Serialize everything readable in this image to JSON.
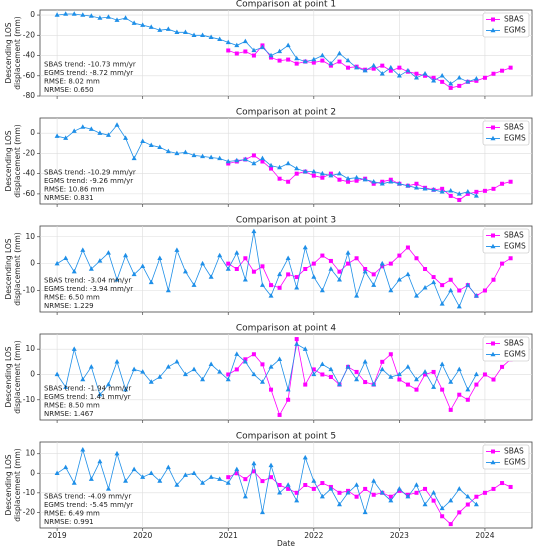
{
  "chart_data": [
    {
      "type": "line",
      "title": "Comparison at point 1",
      "ylabel": [
        "Descending LOS",
        "displacement (mm)"
      ],
      "annotations": [
        "SBAS trend: -10.73 mm/yr",
        "EGMS trend: -8.72 mm/yr",
        "RMSE: 8.02 mm",
        "NRMSE: 0.650"
      ],
      "xlim": [
        2018.8,
        2024.55
      ],
      "ylim": [
        -80,
        5
      ],
      "yticks": [
        -80,
        -60,
        -40,
        -20,
        0
      ],
      "grid": true,
      "legend": "upper right",
      "series": [
        {
          "name": "SBAS",
          "color": "#ff00ff",
          "marker": "s",
          "x": [
            2021,
            2021.1,
            2021.2,
            2021.3,
            2021.4,
            2021.5,
            2021.6,
            2021.7,
            2021.8,
            2021.9,
            2022,
            2022.1,
            2022.2,
            2022.3,
            2022.4,
            2022.5,
            2022.6,
            2022.7,
            2022.8,
            2022.9,
            2023,
            2023.1,
            2023.2,
            2023.3,
            2023.4,
            2023.5,
            2023.6,
            2023.7,
            2023.8,
            2023.9,
            2024,
            2024.1,
            2024.2,
            2024.3
          ],
          "values": [
            -35,
            -38,
            -36,
            -40,
            -30,
            -42,
            -45,
            -44,
            -48,
            -46,
            -47,
            -45,
            -50,
            -46,
            -52,
            -51,
            -54,
            -53,
            -50,
            -55,
            -52,
            -56,
            -58,
            -60,
            -62,
            -66,
            -72,
            -70,
            -66,
            -65,
            -62,
            -58,
            -55,
            -52
          ]
        },
        {
          "name": "EGMS",
          "color": "#1e8fe8",
          "marker": "^",
          "x": [
            2019,
            2019.1,
            2019.2,
            2019.3,
            2019.4,
            2019.5,
            2019.6,
            2019.7,
            2019.8,
            2019.9,
            2020,
            2020.1,
            2020.2,
            2020.3,
            2020.4,
            2020.5,
            2020.6,
            2020.7,
            2020.8,
            2020.9,
            2021,
            2021.1,
            2021.2,
            2021.3,
            2021.4,
            2021.5,
            2021.6,
            2021.7,
            2021.8,
            2021.9,
            2022,
            2022.1,
            2022.2,
            2022.3,
            2022.4,
            2022.5,
            2022.6,
            2022.7,
            2022.8,
            2022.9,
            2023,
            2023.1,
            2023.2,
            2023.3,
            2023.4,
            2023.5,
            2023.6,
            2023.7,
            2023.8,
            2023.9
          ],
          "values": [
            0,
            1,
            1,
            0,
            -1,
            -3,
            -2,
            -5,
            -3,
            -8,
            -10,
            -12,
            -15,
            -14,
            -17,
            -17,
            -20,
            -20,
            -22,
            -24,
            -27,
            -30,
            -26,
            -35,
            -32,
            -40,
            -36,
            -30,
            -43,
            -46,
            -44,
            -40,
            -48,
            -38,
            -45,
            -52,
            -55,
            -50,
            -58,
            -52,
            -60,
            -55,
            -62,
            -58,
            -65,
            -60,
            -68,
            -62,
            -66,
            -63
          ]
        }
      ]
    },
    {
      "type": "line",
      "title": "Comparison at point 2",
      "ylabel": [
        "Descending LOS",
        "displacement (mm)"
      ],
      "annotations": [
        "SBAS trend: -10.29 mm/yr",
        "EGMS trend: -9.26 mm/yr",
        "RMSE: 10.86 mm",
        "NRMSE: 0.831"
      ],
      "xlim": [
        2018.8,
        2024.55
      ],
      "ylim": [
        -70,
        15
      ],
      "yticks": [
        -60,
        -40,
        -20,
        0
      ],
      "grid": true,
      "legend": "upper right",
      "series": [
        {
          "name": "SBAS",
          "color": "#ff00ff",
          "marker": "s",
          "x": [
            2021,
            2021.1,
            2021.2,
            2021.3,
            2021.4,
            2021.5,
            2021.6,
            2021.7,
            2021.8,
            2021.9,
            2022,
            2022.1,
            2022.2,
            2022.3,
            2022.4,
            2022.5,
            2022.6,
            2022.7,
            2022.8,
            2022.9,
            2023,
            2023.1,
            2023.2,
            2023.3,
            2023.4,
            2023.5,
            2023.6,
            2023.7,
            2023.8,
            2023.9,
            2024,
            2024.1,
            2024.2,
            2024.3
          ],
          "values": [
            -30,
            -28,
            -26,
            -22,
            -28,
            -35,
            -45,
            -48,
            -40,
            -38,
            -42,
            -44,
            -40,
            -46,
            -48,
            -47,
            -45,
            -50,
            -48,
            -46,
            -50,
            -52,
            -50,
            -54,
            -56,
            -55,
            -62,
            -66,
            -60,
            -58,
            -57,
            -55,
            -50,
            -48
          ]
        },
        {
          "name": "EGMS",
          "color": "#1e8fe8",
          "marker": "^",
          "x": [
            2019,
            2019.1,
            2019.2,
            2019.3,
            2019.4,
            2019.5,
            2019.6,
            2019.7,
            2019.8,
            2019.9,
            2020,
            2020.1,
            2020.2,
            2020.3,
            2020.4,
            2020.5,
            2020.6,
            2020.7,
            2020.8,
            2020.9,
            2021,
            2021.1,
            2021.2,
            2021.3,
            2021.4,
            2021.5,
            2021.6,
            2021.7,
            2021.8,
            2021.9,
            2022,
            2022.1,
            2022.2,
            2022.3,
            2022.4,
            2022.5,
            2022.6,
            2022.7,
            2022.8,
            2022.9,
            2023,
            2023.1,
            2023.2,
            2023.3,
            2023.4,
            2023.5,
            2023.6,
            2023.7,
            2023.8,
            2023.9
          ],
          "values": [
            -3,
            -5,
            2,
            6,
            4,
            0,
            -2,
            8,
            -5,
            -25,
            -8,
            -12,
            -14,
            -18,
            -20,
            -19,
            -22,
            -23,
            -24,
            -25,
            -28,
            -27,
            -26,
            -30,
            -25,
            -32,
            -34,
            -30,
            -35,
            -38,
            -38,
            -40,
            -42,
            -40,
            -45,
            -44,
            -46,
            -48,
            -50,
            -48,
            -50,
            -52,
            -54,
            -55,
            -56,
            -58,
            -57,
            -60,
            -58,
            -62
          ]
        }
      ]
    },
    {
      "type": "line",
      "title": "Comparison at point 3",
      "ylabel": [
        "Descending LOS",
        "displacement (mm)"
      ],
      "annotations": [
        "SBAS trend: -3.04 mm/yr",
        "EGMS trend: -3.94 mm/yr",
        "RMSE: 6.50 mm",
        "NRMSE: 1.229"
      ],
      "xlim": [
        2018.8,
        2024.55
      ],
      "ylim": [
        -18,
        14
      ],
      "yticks": [
        -10,
        0,
        10
      ],
      "grid": true,
      "legend": "upper right",
      "series": [
        {
          "name": "SBAS",
          "color": "#ff00ff",
          "marker": "s",
          "x": [
            2021,
            2021.1,
            2021.2,
            2021.3,
            2021.4,
            2021.5,
            2021.6,
            2021.7,
            2021.8,
            2021.9,
            2022,
            2022.1,
            2022.2,
            2022.3,
            2022.4,
            2022.5,
            2022.6,
            2022.7,
            2022.8,
            2022.9,
            2023,
            2023.1,
            2023.2,
            2023.3,
            2023.4,
            2023.5,
            2023.6,
            2023.7,
            2023.8,
            2023.9,
            2024,
            2024.1,
            2024.2,
            2024.3
          ],
          "values": [
            0,
            -2,
            2,
            -3,
            -1,
            -8,
            -9,
            -4,
            -5,
            -2,
            0,
            3,
            1,
            -3,
            0,
            2,
            -2,
            -4,
            -1,
            0,
            3,
            6,
            2,
            -2,
            -5,
            -8,
            -6,
            -10,
            -8,
            -12,
            -10,
            -6,
            0,
            2
          ]
        },
        {
          "name": "EGMS",
          "color": "#1e8fe8",
          "marker": "^",
          "x": [
            2019,
            2019.1,
            2019.2,
            2019.3,
            2019.4,
            2019.5,
            2019.6,
            2019.7,
            2019.8,
            2019.9,
            2020,
            2020.1,
            2020.2,
            2020.3,
            2020.4,
            2020.5,
            2020.6,
            2020.7,
            2020.8,
            2020.9,
            2021,
            2021.1,
            2021.2,
            2021.3,
            2021.4,
            2021.5,
            2021.6,
            2021.7,
            2021.8,
            2021.9,
            2022,
            2022.1,
            2022.2,
            2022.3,
            2022.4,
            2022.5,
            2022.6,
            2022.7,
            2022.8,
            2022.9,
            2023,
            2023.1,
            2023.2,
            2023.3,
            2023.4,
            2023.5,
            2023.6,
            2023.7,
            2023.8,
            2023.9
          ],
          "values": [
            0,
            2,
            -3,
            5,
            -2,
            1,
            4,
            -6,
            3,
            -4,
            -1,
            -7,
            2,
            -10,
            5,
            -3,
            -8,
            0,
            -5,
            3,
            -2,
            4,
            -6,
            12,
            -8,
            -12,
            -4,
            2,
            -9,
            6,
            -5,
            -10,
            -2,
            -6,
            4,
            -12,
            -3,
            -8,
            0,
            -10,
            -6,
            -4,
            -12,
            -9,
            -7,
            -15,
            -10,
            -16,
            -8,
            -12
          ]
        }
      ]
    },
    {
      "type": "line",
      "title": "Comparison at point 4",
      "ylabel": [
        "Descending LOS",
        "displacement (mm)"
      ],
      "annotations": [
        "SBAS trend: -1.94 mm/yr",
        "EGMS trend: 1.41 mm/yr",
        "RMSE: 8.50 mm",
        "NRMSE: 1.467"
      ],
      "xlim": [
        2018.8,
        2024.55
      ],
      "ylim": [
        -18,
        16
      ],
      "yticks": [
        -10,
        0,
        10
      ],
      "grid": true,
      "legend": "upper right",
      "series": [
        {
          "name": "SBAS",
          "color": "#ff00ff",
          "marker": "s",
          "x": [
            2021,
            2021.1,
            2021.2,
            2021.3,
            2021.4,
            2021.5,
            2021.6,
            2021.7,
            2021.8,
            2021.9,
            2022,
            2022.1,
            2022.2,
            2022.3,
            2022.4,
            2022.5,
            2022.6,
            2022.7,
            2022.8,
            2022.9,
            2023,
            2023.1,
            2023.2,
            2023.3,
            2023.4,
            2023.5,
            2023.6,
            2023.7,
            2023.8,
            2023.9,
            2024,
            2024.1,
            2024.2,
            2024.3
          ],
          "values": [
            0,
            2,
            6,
            8,
            4,
            -6,
            -16,
            -10,
            14,
            -4,
            2,
            0,
            -1,
            -4,
            3,
            1,
            -3,
            -4,
            5,
            8,
            -2,
            -4,
            -6,
            0,
            1,
            -6,
            -14,
            -8,
            -10,
            -4,
            0,
            -2,
            3,
            6
          ]
        },
        {
          "name": "EGMS",
          "color": "#1e8fe8",
          "marker": "^",
          "x": [
            2019,
            2019.1,
            2019.2,
            2019.3,
            2019.4,
            2019.5,
            2019.6,
            2019.7,
            2019.8,
            2019.9,
            2020,
            2020.1,
            2020.2,
            2020.3,
            2020.4,
            2020.5,
            2020.6,
            2020.7,
            2020.8,
            2020.9,
            2021,
            2021.1,
            2021.2,
            2021.3,
            2021.4,
            2021.5,
            2021.6,
            2021.7,
            2021.8,
            2021.9,
            2022,
            2022.1,
            2022.2,
            2022.3,
            2022.4,
            2022.5,
            2022.6,
            2022.7,
            2022.8,
            2022.9,
            2023,
            2023.1,
            2023.2,
            2023.3,
            2023.4,
            2023.5,
            2023.6,
            2023.7,
            2023.8,
            2023.9
          ],
          "values": [
            0,
            -5,
            10,
            -2,
            3,
            -8,
            -4,
            5,
            -6,
            2,
            1,
            -3,
            -1,
            3,
            5,
            0,
            2,
            -2,
            4,
            1,
            -2,
            8,
            5,
            0,
            -3,
            3,
            6,
            -6,
            12,
            10,
            0,
            4,
            2,
            -4,
            3,
            -2,
            5,
            -4,
            2,
            -1,
            0,
            3,
            -2,
            1,
            -5,
            4,
            -3,
            2,
            -6,
            0
          ]
        }
      ]
    },
    {
      "type": "line",
      "title": "Comparison at point 5",
      "ylabel": [
        "Descending LOS",
        "displacement (mm)"
      ],
      "xlabel": "Date",
      "annotations": [
        "SBAS trend: -4.09 mm/yr",
        "EGMS trend: -5.45 mm/yr",
        "RMSE: 6.49 mm",
        "NRMSE: 0.991"
      ],
      "xlim": [
        2018.8,
        2024.55
      ],
      "xticks": [
        2019,
        2020,
        2021,
        2022,
        2023,
        2024
      ],
      "ylim": [
        -28,
        16
      ],
      "yticks": [
        -20,
        -10,
        0,
        10
      ],
      "grid": true,
      "legend": "upper right",
      "series": [
        {
          "name": "SBAS",
          "color": "#ff00ff",
          "marker": "s",
          "x": [
            2021,
            2021.1,
            2021.2,
            2021.3,
            2021.4,
            2021.5,
            2021.6,
            2021.7,
            2021.8,
            2021.9,
            2022,
            2022.1,
            2022.2,
            2022.3,
            2022.4,
            2022.5,
            2022.6,
            2022.7,
            2022.8,
            2022.9,
            2023,
            2023.1,
            2023.2,
            2023.3,
            2023.4,
            2023.5,
            2023.6,
            2023.7,
            2023.8,
            2023.9,
            2024,
            2024.1,
            2024.2,
            2024.3
          ],
          "values": [
            -2,
            0,
            -3,
            1,
            -4,
            -2,
            -6,
            -8,
            -10,
            -6,
            -8,
            -5,
            -7,
            -10,
            -9,
            -12,
            -8,
            -11,
            -10,
            -12,
            -9,
            -11,
            -10,
            -8,
            -14,
            -22,
            -26,
            -20,
            -16,
            -12,
            -10,
            -8,
            -5,
            -7
          ]
        },
        {
          "name": "EGMS",
          "color": "#1e8fe8",
          "marker": "^",
          "x": [
            2019,
            2019.1,
            2019.2,
            2019.3,
            2019.4,
            2019.5,
            2019.6,
            2019.7,
            2019.8,
            2019.9,
            2020,
            2020.1,
            2020.2,
            2020.3,
            2020.4,
            2020.5,
            2020.6,
            2020.7,
            2020.8,
            2020.9,
            2021,
            2021.1,
            2021.2,
            2021.3,
            2021.4,
            2021.5,
            2021.6,
            2021.7,
            2021.8,
            2021.9,
            2022,
            2022.1,
            2022.2,
            2022.3,
            2022.4,
            2022.5,
            2022.6,
            2022.7,
            2022.8,
            2022.9,
            2023,
            2023.1,
            2023.2,
            2023.3,
            2023.4,
            2023.5,
            2023.6,
            2023.7,
            2023.8,
            2023.9
          ],
          "values": [
            0,
            3,
            -5,
            12,
            -3,
            6,
            -8,
            10,
            -4,
            2,
            -2,
            0,
            -4,
            3,
            -6,
            -1,
            0,
            -5,
            -2,
            -3,
            -5,
            2,
            -12,
            5,
            -20,
            4,
            -10,
            -6,
            -14,
            8,
            -4,
            -12,
            -8,
            -16,
            -10,
            -6,
            -20,
            -4,
            -10,
            -14,
            -8,
            -12,
            -6,
            -16,
            -10,
            -18,
            -14,
            -8,
            -12,
            -16
          ]
        }
      ]
    }
  ]
}
